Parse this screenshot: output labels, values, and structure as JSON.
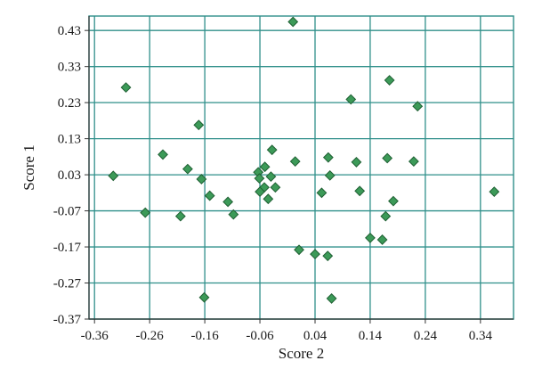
{
  "chart_data": {
    "type": "scatter",
    "xlabel": "Score 2",
    "ylabel": "Score 1",
    "xlim": [
      -0.37,
      0.4
    ],
    "ylim": [
      -0.37,
      0.47
    ],
    "xticks": [
      "-0.36",
      "-0.26",
      "-0.16",
      "-0.06",
      "0.04",
      "0.14",
      "0.24",
      "0.34"
    ],
    "xtick_values": [
      -0.36,
      -0.26,
      -0.16,
      -0.06,
      0.04,
      0.14,
      0.24,
      0.34
    ],
    "yticks": [
      "0.43",
      "0.33",
      "0.23",
      "0.13",
      "0.03",
      "-0.07",
      "-0.17",
      "-0.27",
      "-0.37"
    ],
    "ytick_values": [
      0.43,
      0.33,
      0.23,
      0.13,
      0.03,
      -0.07,
      -0.17,
      -0.27,
      -0.37
    ],
    "grid": true,
    "colors": {
      "marker_fill": "#3c9a58",
      "marker_stroke": "#1f5f33",
      "grid": "#2f8f8a",
      "frame": "#2f8f8a",
      "axis": "#333333"
    },
    "points": [
      {
        "x": 0.0,
        "y": 0.454
      },
      {
        "x": -0.303,
        "y": 0.272
      },
      {
        "x": 0.105,
        "y": 0.239
      },
      {
        "x": 0.175,
        "y": 0.292
      },
      {
        "x": 0.226,
        "y": 0.22
      },
      {
        "x": -0.171,
        "y": 0.168
      },
      {
        "x": -0.236,
        "y": 0.086
      },
      {
        "x": -0.191,
        "y": 0.046
      },
      {
        "x": -0.166,
        "y": 0.018
      },
      {
        "x": -0.326,
        "y": 0.027
      },
      {
        "x": -0.038,
        "y": 0.099
      },
      {
        "x": 0.004,
        "y": 0.067
      },
      {
        "x": -0.063,
        "y": 0.037
      },
      {
        "x": -0.061,
        "y": 0.02
      },
      {
        "x": -0.051,
        "y": 0.052
      },
      {
        "x": -0.04,
        "y": 0.025
      },
      {
        "x": -0.032,
        "y": -0.005
      },
      {
        "x": -0.052,
        "y": -0.005
      },
      {
        "x": -0.06,
        "y": -0.017
      },
      {
        "x": -0.045,
        "y": -0.037
      },
      {
        "x": 0.064,
        "y": 0.078
      },
      {
        "x": 0.067,
        "y": 0.028
      },
      {
        "x": 0.115,
        "y": 0.065
      },
      {
        "x": 0.171,
        "y": 0.076
      },
      {
        "x": 0.219,
        "y": 0.067
      },
      {
        "x": 0.121,
        "y": -0.015
      },
      {
        "x": 0.052,
        "y": -0.02
      },
      {
        "x": -0.151,
        "y": -0.028
      },
      {
        "x": -0.118,
        "y": -0.045
      },
      {
        "x": -0.108,
        "y": -0.08
      },
      {
        "x": -0.268,
        "y": -0.075
      },
      {
        "x": -0.204,
        "y": -0.085
      },
      {
        "x": 0.182,
        "y": -0.043
      },
      {
        "x": 0.168,
        "y": -0.085
      },
      {
        "x": 0.14,
        "y": -0.145
      },
      {
        "x": 0.162,
        "y": -0.15
      },
      {
        "x": 0.011,
        "y": -0.178
      },
      {
        "x": 0.04,
        "y": -0.19
      },
      {
        "x": 0.063,
        "y": -0.195
      },
      {
        "x": 0.07,
        "y": -0.313
      },
      {
        "x": -0.161,
        "y": -0.31
      },
      {
        "x": 0.365,
        "y": -0.017
      }
    ]
  }
}
